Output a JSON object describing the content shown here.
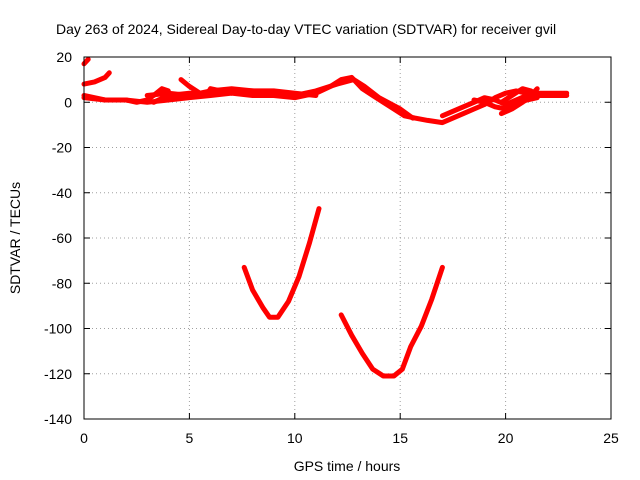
{
  "chart_data": {
    "type": "line",
    "title": "Day 263 of 2024, Sidereal Day-to-day VTEC variation (SDTVAR) for receiver gvil",
    "xlabel": "GPS time / hours",
    "ylabel": "SDTVAR / TECUs",
    "xlim": [
      0,
      25
    ],
    "ylim": [
      -140,
      20
    ],
    "xticks": [
      0,
      5,
      10,
      15,
      20,
      25
    ],
    "yticks": [
      20,
      0,
      -20,
      -40,
      -60,
      -80,
      -100,
      -120,
      -140
    ],
    "grid": true,
    "legend": "none",
    "series_color": "#ff0000",
    "series": [
      {
        "values": [
          [
            0.0,
            17
          ],
          [
            0.2,
            19
          ]
        ]
      },
      {
        "values": [
          [
            0.0,
            8
          ],
          [
            0.5,
            9
          ],
          [
            1.0,
            11
          ],
          [
            1.2,
            13
          ]
        ]
      },
      {
        "values": [
          [
            0.0,
            3
          ],
          [
            0.5,
            2
          ],
          [
            1.0,
            1
          ],
          [
            2.0,
            1
          ],
          [
            2.5,
            0
          ],
          [
            3.0,
            1
          ],
          [
            3.3,
            3
          ],
          [
            3.7,
            6
          ],
          [
            4.0,
            5
          ]
        ]
      },
      {
        "values": [
          [
            0.0,
            2
          ],
          [
            1.0,
            1
          ],
          [
            2.0,
            1
          ],
          [
            3.0,
            0
          ],
          [
            4.0,
            1
          ],
          [
            5.0,
            2
          ],
          [
            6.0,
            3
          ],
          [
            7.0,
            4
          ],
          [
            8.0,
            3
          ],
          [
            9.0,
            3
          ],
          [
            10.0,
            2
          ],
          [
            11.0,
            4
          ],
          [
            11.7,
            7
          ],
          [
            12.2,
            10
          ],
          [
            12.7,
            11
          ],
          [
            13.2,
            6
          ],
          [
            13.7,
            3
          ],
          [
            14.2,
            0
          ],
          [
            14.7,
            -3
          ],
          [
            15.2,
            -6
          ],
          [
            15.7,
            -7
          ],
          [
            16.3,
            -8
          ],
          [
            17.0,
            -9
          ],
          [
            17.5,
            -7
          ],
          [
            18.0,
            -5
          ],
          [
            18.5,
            -3
          ],
          [
            19.0,
            -1
          ],
          [
            19.5,
            2
          ],
          [
            20.0,
            4
          ],
          [
            20.5,
            5
          ],
          [
            21.0,
            4
          ],
          [
            22.0,
            4
          ],
          [
            22.9,
            4
          ]
        ]
      },
      {
        "values": [
          [
            3.0,
            3
          ],
          [
            4.0,
            4
          ],
          [
            5.0,
            3
          ],
          [
            6.0,
            5
          ],
          [
            7.0,
            6
          ],
          [
            8.0,
            5
          ],
          [
            9.0,
            4
          ],
          [
            10.0,
            3
          ],
          [
            11.0,
            5
          ],
          [
            12.0,
            8
          ],
          [
            12.8,
            10
          ],
          [
            13.3,
            7
          ],
          [
            14.0,
            2
          ],
          [
            15.0,
            -3
          ],
          [
            15.6,
            -7
          ]
        ]
      },
      {
        "values": [
          [
            3.3,
            0
          ],
          [
            4.0,
            3
          ],
          [
            5.0,
            4
          ],
          [
            6.0,
            4
          ],
          [
            7.0,
            5
          ],
          [
            8.0,
            5
          ],
          [
            9.0,
            5
          ],
          [
            10.0,
            4
          ],
          [
            11.0,
            3
          ]
        ]
      },
      {
        "values": [
          [
            4.6,
            10
          ],
          [
            5.0,
            7
          ],
          [
            5.5,
            4
          ],
          [
            5.8,
            3
          ],
          [
            6.0,
            6
          ],
          [
            6.5,
            5
          ],
          [
            7.0,
            4
          ]
        ]
      },
      {
        "values": [
          [
            17.0,
            -6
          ],
          [
            17.5,
            -4
          ],
          [
            18.0,
            -2
          ],
          [
            18.5,
            0
          ],
          [
            19.0,
            2
          ],
          [
            19.5,
            1
          ],
          [
            20.0,
            -1
          ],
          [
            20.5,
            1
          ],
          [
            21.0,
            3
          ],
          [
            21.5,
            4
          ],
          [
            22.0,
            3
          ],
          [
            22.9,
            3
          ]
        ]
      },
      {
        "values": [
          [
            18.5,
            1
          ],
          [
            19.0,
            0
          ],
          [
            19.5,
            -2
          ],
          [
            20.0,
            -3
          ],
          [
            20.5,
            -1
          ],
          [
            21.0,
            1
          ],
          [
            21.5,
            2
          ]
        ]
      },
      {
        "values": [
          [
            19.8,
            -5
          ],
          [
            20.3,
            -3
          ],
          [
            20.8,
            0
          ],
          [
            21.2,
            3
          ],
          [
            21.5,
            6
          ]
        ]
      },
      {
        "values": [
          [
            19.8,
            0
          ],
          [
            20.3,
            3
          ],
          [
            20.8,
            6
          ],
          [
            21.2,
            5
          ],
          [
            21.5,
            3
          ],
          [
            22.0,
            3
          ]
        ]
      },
      {
        "values": [
          [
            7.6,
            -73
          ],
          [
            8.0,
            -83
          ],
          [
            8.5,
            -91
          ],
          [
            8.8,
            -95
          ],
          [
            9.2,
            -95
          ],
          [
            9.7,
            -88
          ],
          [
            10.2,
            -77
          ],
          [
            10.7,
            -62
          ],
          [
            11.15,
            -47
          ]
        ]
      },
      {
        "values": [
          [
            12.2,
            -94
          ],
          [
            12.7,
            -103
          ],
          [
            13.2,
            -111
          ],
          [
            13.7,
            -118
          ],
          [
            14.2,
            -121
          ],
          [
            14.7,
            -121
          ],
          [
            15.1,
            -118
          ],
          [
            15.5,
            -108
          ],
          [
            16.0,
            -99
          ],
          [
            16.5,
            -87
          ],
          [
            17.0,
            -73
          ]
        ]
      }
    ]
  }
}
